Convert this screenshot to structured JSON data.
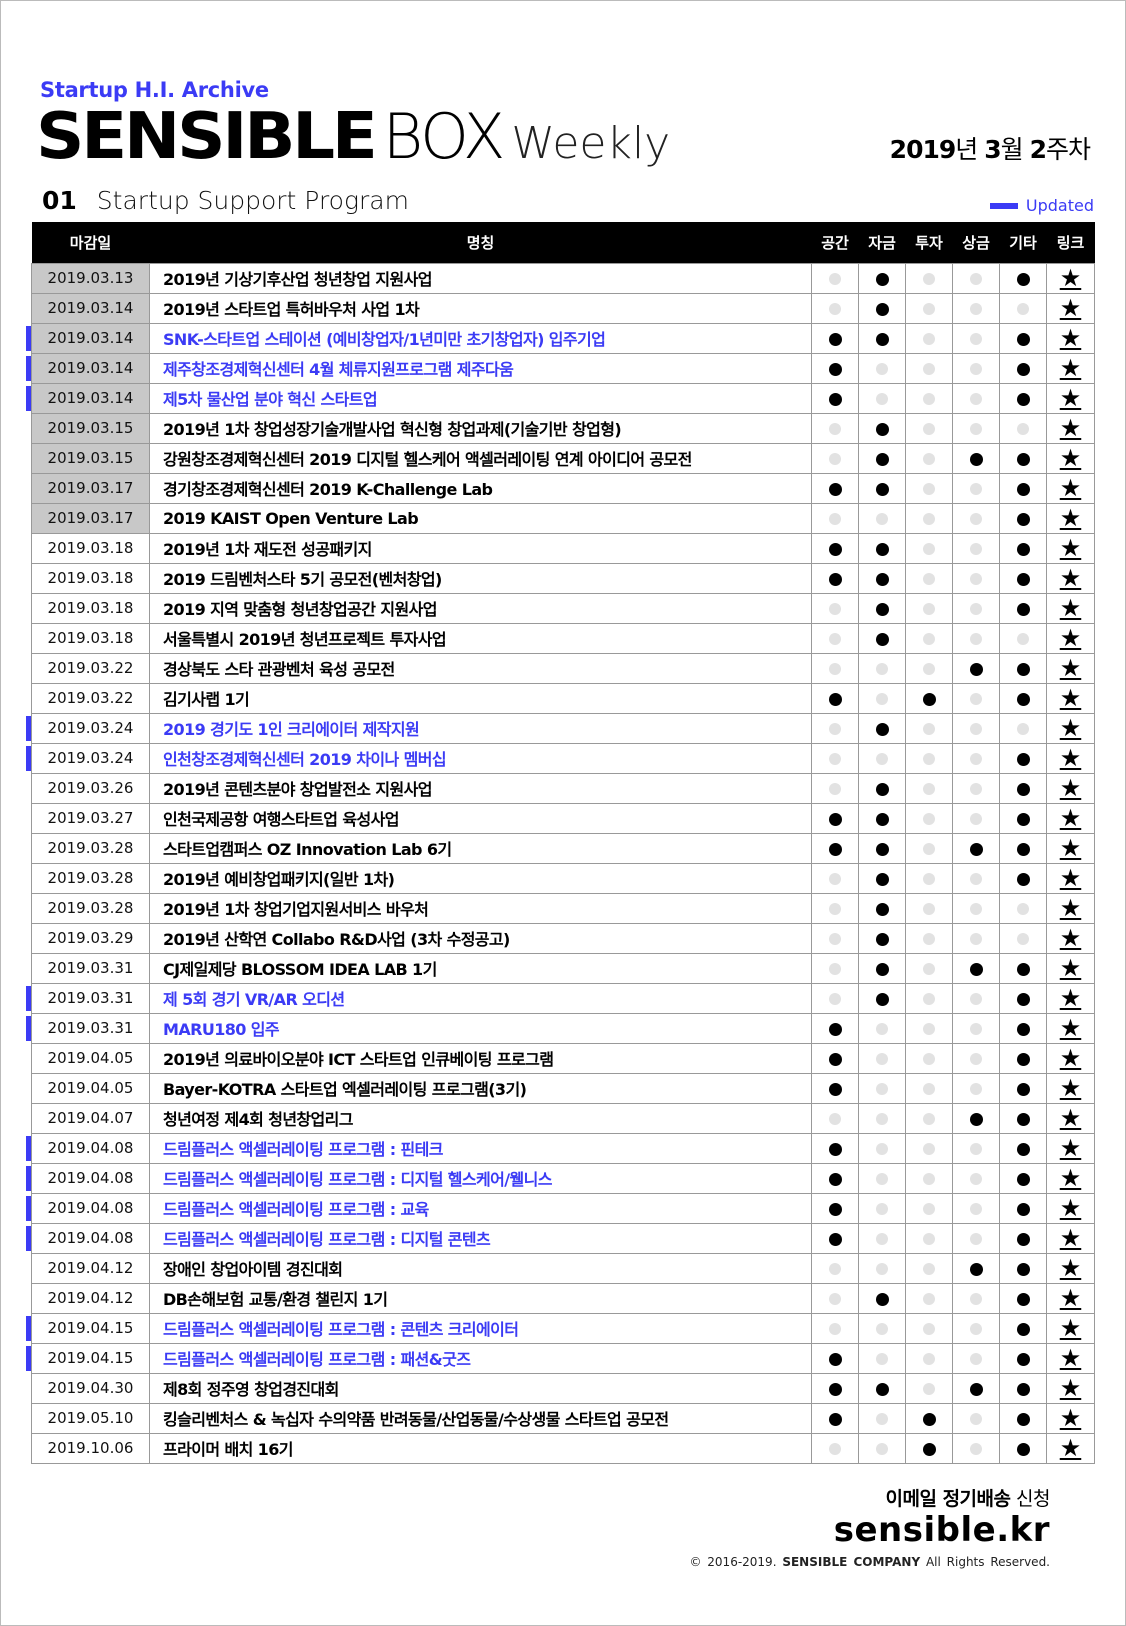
{
  "header": {
    "archive": "Startup H.I. Archive",
    "logo_bold": "SENSIBLE",
    "logo_light": "BOX",
    "logo_weekly": "Weekly",
    "issue_year": "2019",
    "issue_year_unit": "년 ",
    "issue_month": "3",
    "issue_month_unit": "월 ",
    "issue_week": "2",
    "issue_week_unit": "주차"
  },
  "section": {
    "number": "01",
    "title": "Startup Support Program",
    "legend_label": "Updated"
  },
  "colors": {
    "accent": "#3b3bf5",
    "past_deadline": "#c8c8c8",
    "on": "#000000",
    "off": "#e2e2e2"
  },
  "table": {
    "columns": [
      "마감일",
      "명칭",
      "공간",
      "자금",
      "투자",
      "상금",
      "기타",
      "링크"
    ],
    "link_icon": "★",
    "rows": [
      {
        "date": "2019.03.13",
        "name": "2019년 기상기후산업 청년창업 지원사업",
        "past": true,
        "updated": false,
        "flags": [
          0,
          1,
          0,
          0,
          1
        ]
      },
      {
        "date": "2019.03.14",
        "name": "2019년 스타트업 특허바우처 사업 1차",
        "past": true,
        "updated": false,
        "flags": [
          0,
          1,
          0,
          0,
          0
        ]
      },
      {
        "date": "2019.03.14",
        "name": "SNK-스타트업 스테이션 (예비창업자/1년미만 초기창업자) 입주기업",
        "past": true,
        "updated": true,
        "flags": [
          1,
          1,
          0,
          0,
          1
        ]
      },
      {
        "date": "2019.03.14",
        "name": "제주창조경제혁신센터 4월 체류지원프로그램 제주다움",
        "past": true,
        "updated": true,
        "flags": [
          1,
          0,
          0,
          0,
          1
        ]
      },
      {
        "date": "2019.03.14",
        "name": "제5차 물산업 분야 혁신 스타트업",
        "past": true,
        "updated": true,
        "flags": [
          1,
          0,
          0,
          0,
          1
        ]
      },
      {
        "date": "2019.03.15",
        "name": "2019년 1차 창업성장기술개발사업 혁신형 창업과제(기술기반 창업형)",
        "past": true,
        "updated": false,
        "flags": [
          0,
          1,
          0,
          0,
          0
        ]
      },
      {
        "date": "2019.03.15",
        "name": "강원창조경제혁신센터 2019 디지털 헬스케어 액셀러레이팅 연계 아이디어 공모전",
        "past": true,
        "updated": false,
        "flags": [
          0,
          1,
          0,
          1,
          1
        ]
      },
      {
        "date": "2019.03.17",
        "name": "경기창조경제혁신센터 2019 K-Challenge Lab",
        "past": true,
        "updated": false,
        "flags": [
          1,
          1,
          0,
          0,
          1
        ]
      },
      {
        "date": "2019.03.17",
        "name": "2019 KAIST Open Venture Lab",
        "past": true,
        "updated": false,
        "flags": [
          0,
          0,
          0,
          0,
          1
        ]
      },
      {
        "date": "2019.03.18",
        "name": "2019년 1차 재도전 성공패키지",
        "past": false,
        "updated": false,
        "flags": [
          1,
          1,
          0,
          0,
          1
        ]
      },
      {
        "date": "2019.03.18",
        "name": "2019 드림벤처스타 5기 공모전(벤처창업)",
        "past": false,
        "updated": false,
        "flags": [
          1,
          1,
          0,
          0,
          1
        ]
      },
      {
        "date": "2019.03.18",
        "name": "2019 지역 맞춤형 청년창업공간 지원사업",
        "past": false,
        "updated": false,
        "flags": [
          0,
          1,
          0,
          0,
          1
        ]
      },
      {
        "date": "2019.03.18",
        "name": "서울특별시 2019년 청년프로젝트 투자사업",
        "past": false,
        "updated": false,
        "flags": [
          0,
          1,
          0,
          0,
          0
        ]
      },
      {
        "date": "2019.03.22",
        "name": "경상북도 스타 관광벤처 육성 공모전",
        "past": false,
        "updated": false,
        "flags": [
          0,
          0,
          0,
          1,
          1
        ]
      },
      {
        "date": "2019.03.22",
        "name": "김기사랩 1기",
        "past": false,
        "updated": false,
        "flags": [
          1,
          0,
          1,
          0,
          1
        ]
      },
      {
        "date": "2019.03.24",
        "name": "2019 경기도 1인 크리에이터 제작지원",
        "past": false,
        "updated": true,
        "flags": [
          0,
          1,
          0,
          0,
          0
        ]
      },
      {
        "date": "2019.03.24",
        "name": "인천창조경제혁신센터 2019 차이나 멤버십",
        "past": false,
        "updated": true,
        "flags": [
          0,
          0,
          0,
          0,
          1
        ]
      },
      {
        "date": "2019.03.26",
        "name": "2019년 콘텐츠분야 창업발전소 지원사업",
        "past": false,
        "updated": false,
        "flags": [
          0,
          1,
          0,
          0,
          1
        ]
      },
      {
        "date": "2019.03.27",
        "name": "인천국제공항 여행스타트업 육성사업",
        "past": false,
        "updated": false,
        "flags": [
          1,
          1,
          0,
          0,
          1
        ]
      },
      {
        "date": "2019.03.28",
        "name": "스타트업캠퍼스 OZ Innovation Lab 6기",
        "past": false,
        "updated": false,
        "flags": [
          1,
          1,
          0,
          1,
          1
        ]
      },
      {
        "date": "2019.03.28",
        "name": "2019년 예비창업패키지(일반 1차)",
        "past": false,
        "updated": false,
        "flags": [
          0,
          1,
          0,
          0,
          1
        ]
      },
      {
        "date": "2019.03.28",
        "name": "2019년 1차 창업기업지원서비스 바우처",
        "past": false,
        "updated": false,
        "flags": [
          0,
          1,
          0,
          0,
          0
        ]
      },
      {
        "date": "2019.03.29",
        "name": "2019년 산학연 Collabo R&D사업 (3차 수정공고)",
        "past": false,
        "updated": false,
        "flags": [
          0,
          1,
          0,
          0,
          0
        ]
      },
      {
        "date": "2019.03.31",
        "name": "CJ제일제당 BLOSSOM IDEA LAB 1기",
        "past": false,
        "updated": false,
        "flags": [
          0,
          1,
          0,
          1,
          1
        ]
      },
      {
        "date": "2019.03.31",
        "name": "제 5회 경기 VR/AR 오디션",
        "past": false,
        "updated": true,
        "flags": [
          0,
          1,
          0,
          0,
          1
        ]
      },
      {
        "date": "2019.03.31",
        "name": "MARU180 입주",
        "past": false,
        "updated": true,
        "flags": [
          1,
          0,
          0,
          0,
          1
        ]
      },
      {
        "date": "2019.04.05",
        "name": "2019년 의료바이오분야 ICT 스타트업 인큐베이팅 프로그램",
        "past": false,
        "updated": false,
        "flags": [
          1,
          0,
          0,
          0,
          1
        ]
      },
      {
        "date": "2019.04.05",
        "name": "Bayer-KOTRA 스타트업 엑셀러레이팅 프로그램(3기)",
        "past": false,
        "updated": false,
        "flags": [
          1,
          0,
          0,
          0,
          1
        ]
      },
      {
        "date": "2019.04.07",
        "name": "청년여정 제4회 청년창업리그",
        "past": false,
        "updated": false,
        "flags": [
          0,
          0,
          0,
          1,
          1
        ]
      },
      {
        "date": "2019.04.08",
        "name": "드림플러스 액셀러레이팅 프로그램 : 핀테크",
        "past": false,
        "updated": true,
        "flags": [
          1,
          0,
          0,
          0,
          1
        ]
      },
      {
        "date": "2019.04.08",
        "name": "드림플러스 액셀러레이팅 프로그램 : 디지털 헬스케어/웰니스",
        "past": false,
        "updated": true,
        "flags": [
          1,
          0,
          0,
          0,
          1
        ]
      },
      {
        "date": "2019.04.08",
        "name": "드림플러스 액셀러레이팅 프로그램 : 교육",
        "past": false,
        "updated": true,
        "flags": [
          1,
          0,
          0,
          0,
          1
        ]
      },
      {
        "date": "2019.04.08",
        "name": "드림플러스 액셀러레이팅 프로그램 : 디지털 콘텐츠",
        "past": false,
        "updated": true,
        "flags": [
          1,
          0,
          0,
          0,
          1
        ]
      },
      {
        "date": "2019.04.12",
        "name": "장애인 창업아이템 경진대회",
        "past": false,
        "updated": false,
        "flags": [
          0,
          0,
          0,
          1,
          1
        ]
      },
      {
        "date": "2019.04.12",
        "name": "DB손해보험 교통/환경 챌린지 1기",
        "past": false,
        "updated": false,
        "flags": [
          0,
          1,
          0,
          0,
          1
        ]
      },
      {
        "date": "2019.04.15",
        "name": "드림플러스 액셀러레이팅 프로그램 : 콘텐츠 크리에이터",
        "past": false,
        "updated": true,
        "flags": [
          0,
          0,
          0,
          0,
          1
        ]
      },
      {
        "date": "2019.04.15",
        "name": "드림플러스 액셀러레이팅 프로그램 : 패션&굿즈",
        "past": false,
        "updated": true,
        "flags": [
          1,
          0,
          0,
          0,
          1
        ]
      },
      {
        "date": "2019.04.30",
        "name": "제8회 정주영 창업경진대회",
        "past": false,
        "updated": false,
        "flags": [
          1,
          1,
          0,
          1,
          1
        ]
      },
      {
        "date": "2019.05.10",
        "name": "킹슬리벤처스 & 녹십자 수의약품 반려동물/산업동물/수상생물 스타트업 공모전",
        "past": false,
        "updated": false,
        "flags": [
          1,
          0,
          1,
          0,
          1
        ]
      },
      {
        "date": "2019.10.06",
        "name": "프라이머 배치 16기",
        "past": false,
        "updated": false,
        "flags": [
          0,
          0,
          1,
          0,
          1
        ]
      }
    ]
  },
  "footer": {
    "subscribe_bold": "이메일 정기배송",
    "subscribe_light": " 신청",
    "site": "sensible.kr",
    "copyright_pre": "© 2016-2019. ",
    "company": "SENSIBLE COMPANY",
    "copyright_post": " All Rights Reserved."
  }
}
